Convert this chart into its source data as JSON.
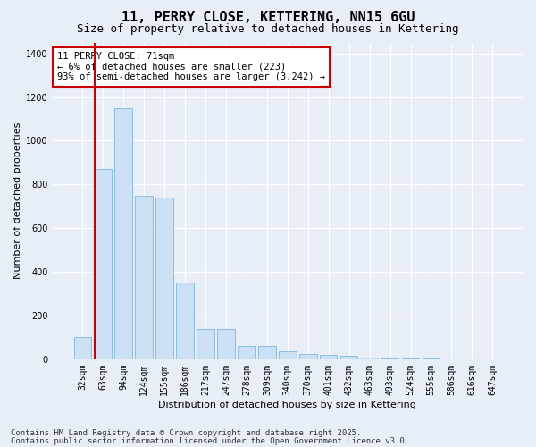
{
  "title": "11, PERRY CLOSE, KETTERING, NN15 6GU",
  "subtitle": "Size of property relative to detached houses in Kettering",
  "xlabel": "Distribution of detached houses by size in Kettering",
  "ylabel": "Number of detached properties",
  "categories": [
    "32sqm",
    "63sqm",
    "94sqm",
    "124sqm",
    "155sqm",
    "186sqm",
    "217sqm",
    "247sqm",
    "278sqm",
    "309sqm",
    "340sqm",
    "370sqm",
    "401sqm",
    "432sqm",
    "463sqm",
    "493sqm",
    "524sqm",
    "555sqm",
    "586sqm",
    "616sqm",
    "647sqm"
  ],
  "values": [
    100,
    870,
    1150,
    750,
    740,
    350,
    140,
    140,
    62,
    60,
    35,
    25,
    20,
    15,
    8,
    5,
    3,
    2,
    1,
    0,
    0
  ],
  "bar_color": "#cce0f5",
  "bar_edge_color": "#8bbde0",
  "vline_color": "#cc0000",
  "annotation_text": "11 PERRY CLOSE: 71sqm\n← 6% of detached houses are smaller (223)\n93% of semi-detached houses are larger (3,242) →",
  "annotation_box_color": "#ffffff",
  "annotation_box_edge": "#cc0000",
  "ylim": [
    0,
    1450
  ],
  "yticks": [
    0,
    200,
    400,
    600,
    800,
    1000,
    1200,
    1400
  ],
  "background_color": "#e8eef8",
  "grid_color": "#ffffff",
  "footer_line1": "Contains HM Land Registry data © Crown copyright and database right 2025.",
  "footer_line2": "Contains public sector information licensed under the Open Government Licence v3.0.",
  "title_fontsize": 11,
  "subtitle_fontsize": 9,
  "axis_label_fontsize": 8,
  "tick_fontsize": 7,
  "annotation_fontsize": 7.5,
  "footer_fontsize": 6.5
}
